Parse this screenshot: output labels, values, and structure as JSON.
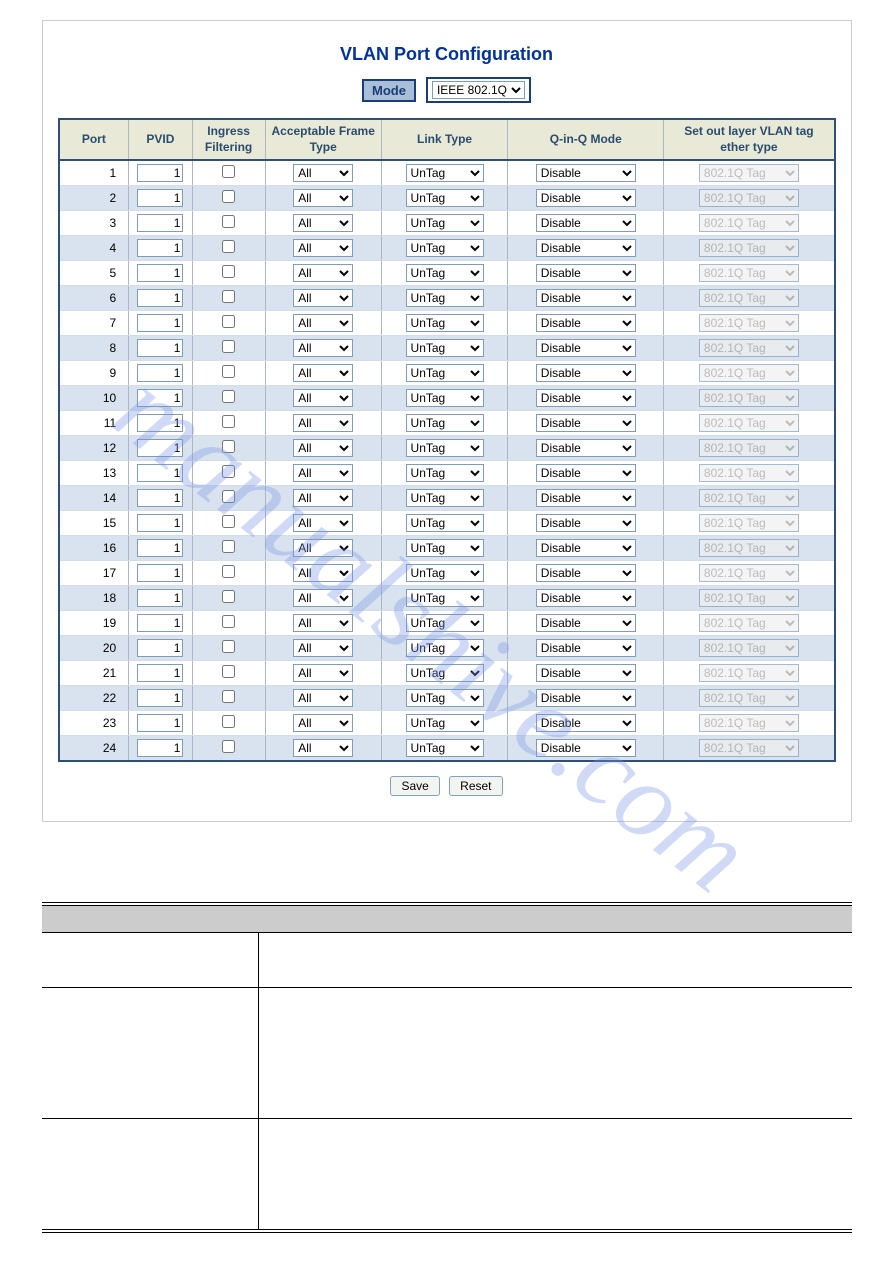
{
  "panel": {
    "title": "VLAN Port Configuration",
    "mode_label": "Mode",
    "mode_value": "IEEE 802.1Q"
  },
  "columns": {
    "port": "Port",
    "pvid": "PVID",
    "ingress": "Ingress Filtering",
    "frame": "Acceptable Frame Type",
    "link": "Link Type",
    "qinq": "Q-in-Q Mode",
    "setout": "Set out layer VLAN tag ether type"
  },
  "row_defaults": {
    "pvid": "1",
    "ingress_checked": false,
    "frame_type": "All",
    "link_type": "UnTag",
    "qinq_mode": "Disable",
    "setout": "802.1Q Tag"
  },
  "port_count": 24,
  "buttons": {
    "save": "Save",
    "reset": "Reset"
  },
  "watermark": "manualshive.com",
  "styles": {
    "title_color": "#003399",
    "header_bg": "#e8e9d6",
    "header_text": "#2b4c6f",
    "table_border": "#2f4f75",
    "row_odd_bg": "#ffffff",
    "row_even_bg": "#d9e3ef",
    "mode_box_border": "#1a3d73",
    "mode_box_bg": "#a8bed9",
    "disabled_text": "#a0a0a0",
    "watermark_color": "rgba(120,150,230,0.35)"
  },
  "description": {
    "rows": [
      {
        "left": "",
        "right": ""
      },
      {
        "left": "",
        "right": ""
      },
      {
        "left": "",
        "right": ""
      }
    ]
  }
}
